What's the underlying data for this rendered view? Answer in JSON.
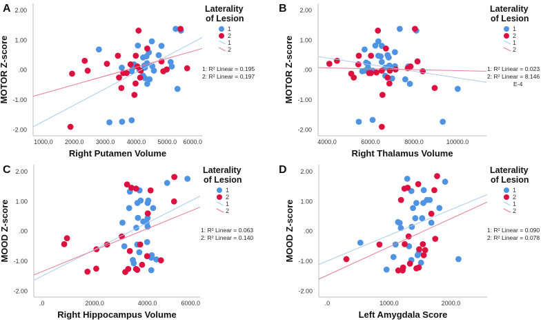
{
  "colors": {
    "group1": "#4F94E3",
    "group2": "#DD1140",
    "fit1": "#A8CBEF",
    "fit2": "#E77A93"
  },
  "chart_data": [
    {
      "type": "scatter",
      "panel_letter": "A",
      "xlabel": "Right Putamen Volume",
      "ylabel": "MOTOR Z-score",
      "xlim": [
        667,
        6130
      ],
      "ylim": [
        -2.2,
        2.23
      ],
      "xticks": [
        1000,
        2000,
        3000,
        4000,
        5000,
        6000
      ],
      "xtick_labels": [
        "1000.0",
        "2000.0",
        "3000.0",
        "4000.0",
        "5000.0",
        "6000.0"
      ],
      "yticks": [
        2,
        1,
        0,
        -1,
        -2
      ],
      "ytick_labels": [
        "2.00",
        "1.00",
        ".00",
        "-1.00",
        "-2.00"
      ],
      "legend": {
        "title_line1": "Laterality",
        "title_line2": "of Lesion",
        "items": [
          "1",
          "2",
          "1",
          "2"
        ],
        "placement": "right"
      },
      "r2_labels": [
        "1: R² Linear = 0.195",
        "2: R² Linear = 0.197"
      ],
      "series": [
        {
          "name": "1",
          "x": [
            2793,
            3533,
            3133,
            3541,
            3852,
            4052,
            3926,
            3852,
            3889,
            4104,
            4222,
            4333,
            4407,
            4348,
            4281,
            4259,
            4222,
            4281,
            4430,
            4355,
            4504,
            4519,
            4570,
            4726,
            4815,
            5111,
            5148,
            5333,
            5274,
            5444
          ],
          "y": [
            0.69,
            0.08,
            -1.75,
            -1.73,
            -1.68,
            0.82,
            0.19,
            -0.04,
            0.08,
            0,
            0.42,
            0.46,
            0.59,
            0.23,
            0.08,
            0.15,
            -0.19,
            -0.27,
            -0.31,
            -0.46,
            0.96,
            0.13,
            -0.02,
            0.5,
            0.81,
            0.27,
            0.12,
            -0.63,
            1.38,
            1.32
          ],
          "fit": {
            "x": [
              667,
              6130
            ],
            "y": [
              -1.9,
              1.09
            ]
          }
        },
        {
          "name": "2",
          "x": [
            1874,
            1926,
            2333,
            2430,
            3052,
            3407,
            3444,
            3519,
            3578,
            3689,
            3815,
            3985,
            3978,
            3941,
            4037,
            4074,
            4148,
            4126,
            4356,
            4815,
            4874,
            4985,
            5430,
            5644
          ],
          "y": [
            -1.9,
            -0.12,
            0.31,
            -0.02,
            0.21,
            0.48,
            -0.25,
            -0.6,
            -0.1,
            -0.1,
            0.19,
            0.48,
            -0.45,
            -0.83,
            0.12,
            1.32,
            -0.02,
            -0.25,
            0.72,
            0.29,
            -0.04,
            0.02,
            1.38,
            0.06
          ],
          "fit": {
            "x": [
              667,
              6130
            ],
            "y": [
              -0.88,
              0.72
            ]
          }
        }
      ]
    },
    {
      "type": "scatter",
      "panel_letter": "B",
      "xlabel": "Right Thalamus Volume",
      "ylabel": "MOTOR Z-score",
      "xlim": [
        3587,
        11333
      ],
      "ylim": [
        -2.2,
        2.23
      ],
      "xticks": [
        4000,
        6000,
        8000,
        10000
      ],
      "xtick_labels": [
        "4000.0",
        "6000.0",
        "8000.0",
        "10000.0"
      ],
      "yticks": [
        2,
        1,
        0,
        -1,
        -2
      ],
      "ytick_labels": [
        "2.00",
        "1.00",
        ".00",
        "-1.00",
        "-2.00"
      ],
      "legend": {
        "title_line1": "Laterality",
        "title_line2": "of Lesion",
        "items": [
          "1",
          "2",
          "1",
          "2"
        ],
        "placement": "right"
      },
      "r2_labels": [
        "1: R² Linear = 0.023",
        "2: R² Linear = 8.146",
        "E-4"
      ],
      "series": [
        {
          "name": "1",
          "x": [
            5460,
            6095,
            9323,
            7344,
            8106,
            6360,
            6222,
            6519,
            5725,
            6360,
            6466,
            6783,
            6836,
            7122,
            5799,
            5884,
            6519,
            5884,
            5619,
            5725,
            6095,
            6677,
            6868,
            7122,
            7100,
            6677,
            6995,
            7598,
            7810,
            7735,
            10011
          ],
          "y": [
            -1.73,
            -1.67,
            -1.73,
            1.38,
            1.32,
            0.96,
            0.82,
            0.81,
            0.69,
            0.48,
            0.46,
            0.5,
            0.42,
            0.6,
            0.25,
            0.21,
            0.27,
            0.08,
            -0.04,
            -0.02,
            -0.02,
            0.08,
            0.15,
            0.13,
            0.09,
            -0.19,
            -0.28,
            -0.31,
            -0.46,
            0.12,
            -0.63
          ],
          "fit": {
            "x": [
              3587,
              11333
            ],
            "y": [
              0.45,
              -0.41
            ]
          }
        },
        {
          "name": "2",
          "x": [
            4106,
            4455,
            5111,
            5228,
            5460,
            5439,
            5937,
            6021,
            6021,
            6275,
            6339,
            6519,
            6550,
            6519,
            6709,
            6783,
            6868,
            6889,
            7153,
            7714,
            7841,
            8042,
            8159,
            8402,
            8952
          ],
          "y": [
            0.21,
            0.31,
            -0.12,
            -0.25,
            0.48,
            0.19,
            -0.1,
            -0.1,
            0.48,
            -0.08,
            1.32,
            -0.02,
            -0.83,
            -1.9,
            0.72,
            -0.25,
            -0.45,
            -0.02,
            0.02,
            0.06,
            0.12,
            1.38,
            0.29,
            -0.04,
            -0.6
          ],
          "fit": {
            "x": [
              3587,
              11333
            ],
            "y": [
              0.08,
              -0.04
            ]
          }
        }
      ]
    },
    {
      "type": "scatter",
      "panel_letter": "C",
      "xlabel": "Right Hippocampus Volume",
      "ylabel": "MOOD Z-score",
      "xlim": [
        -306,
        6000
      ],
      "ylim": [
        -2.2,
        2.23
      ],
      "xticks": [
        0,
        2000,
        4000,
        6000
      ],
      "xtick_labels": [
        ".0",
        "2000.0",
        "4000.0",
        "6000.0"
      ],
      "yticks": [
        2,
        1,
        0,
        -1,
        -2
      ],
      "ytick_labels": [
        "2.00",
        "1.00",
        ".00",
        "-1.00",
        "-2.00"
      ],
      "legend": {
        "title_line1": "Laterality",
        "title_line2": "of Lesion",
        "items": [
          "1",
          "2",
          "1",
          "2"
        ],
        "placement": "right"
      },
      "r2_labels": [
        "1: R² Linear = 0.063",
        "2: R² Linear = 0.140"
      ],
      "series": [
        {
          "name": "1",
          "x": [
            5520,
            4751,
            3336,
            3703,
            3624,
            3747,
            4035,
            4009,
            3310,
            4218,
            3642,
            4009,
            3057,
            3843,
            3974,
            4009,
            3581,
            3127,
            3616,
            3991,
            3694,
            3450,
            3485,
            4166,
            4148,
            4341,
            4148
          ],
          "y": [
            1.76,
            1.62,
            1.33,
            1.37,
            0.95,
            1.03,
            1.03,
            0.95,
            0.78,
            0.78,
            0.45,
            0.45,
            0.29,
            0.33,
            0.29,
            0.16,
            0.12,
            -0.5,
            -0.44,
            -0.36,
            -0.7,
            -0.96,
            -1.07,
            -0.8,
            -0.88,
            -0.94,
            -1.3
          ],
          "fit": {
            "x": [
              -306,
              6000
            ],
            "y": [
              -1.64,
              1.18
            ]
          }
        },
        {
          "name": "2",
          "x": [
            847,
            952,
            2070,
            2472,
            2061,
            1729,
            3031,
            3231,
            3397,
            3572,
            4122,
            3336,
            3729,
            4017,
            3991,
            3275,
            3162,
            3572,
            3616,
            3799,
            4515,
            5022,
            5013
          ],
          "y": [
            -0.43,
            -0.23,
            -0.6,
            -0.44,
            -1.25,
            -1.35,
            -0.17,
            1.57,
            1.46,
            1.43,
            1.37,
            -0.66,
            -0.44,
            0.6,
            -0.83,
            -1.26,
            -1.36,
            -1.26,
            -1.29,
            -1.12,
            -0.97,
            1.82,
            1.0
          ],
          "fit": {
            "x": [
              -306,
              6000
            ],
            "y": [
              -1.46,
              0.81
            ]
          }
        }
      ]
    },
    {
      "type": "scatter",
      "panel_letter": "D",
      "xlabel": "Left Amygdala Score",
      "ylabel": "MOOD Z-score",
      "xlim": [
        -138,
        2587
      ],
      "ylim": [
        -2.2,
        2.23
      ],
      "xticks": [
        0,
        1000,
        2000
      ],
      "xtick_labels": [
        ".0",
        "1000.0",
        "2000.0"
      ],
      "yticks": [
        2,
        1,
        0,
        -1,
        -2
      ],
      "ytick_labels": [
        "2.00",
        "1.00",
        ".00",
        "-1.00",
        "-2.00"
      ],
      "legend": {
        "title_line1": "Laterality",
        "title_line2": "of Lesion",
        "items": [
          "1",
          "2",
          "1",
          "2"
        ],
        "placement": "right"
      },
      "r2_labels": [
        "1: R² Linear = 0.090",
        "2: R² Linear = 0.078"
      ],
      "series": [
        {
          "name": "1",
          "x": [
            1294,
            1907,
            1361,
            1561,
            1442,
            1554,
            1613,
            1658,
            1387,
            1814,
            1424,
            1535,
            1145,
            1171,
            1684,
            1190,
            1368,
            535,
            1104,
            1323,
            1480,
            1461,
            1071,
            1361,
            1517,
            959,
            2123
          ],
          "y": [
            1.76,
            1.66,
            1.35,
            1.38,
            0.95,
            0.95,
            1.05,
            1.05,
            0.78,
            0.78,
            0.44,
            0.44,
            0.31,
            0.28,
            0.29,
            0.11,
            0.15,
            -0.38,
            -0.44,
            -0.5,
            -0.73,
            -0.8,
            -0.86,
            -0.96,
            -1.05,
            -1.28,
            -0.93
          ],
          "fit": {
            "x": [
              -138,
              2587
            ],
            "y": [
              -1.11,
              1.23
            ]
          }
        },
        {
          "name": "2",
          "x": [
            309,
            844,
            1193,
            1249,
            1301,
            1472,
            1777,
            1732,
            1684,
            1747,
            1316,
            1253,
            1546,
            1487,
            1584,
            1561,
            1338,
            1227,
            1219,
            1149,
            1442,
            1480
          ],
          "y": [
            -0.93,
            -0.44,
            1.05,
            1.43,
            1.46,
            1.58,
            1.85,
            1.38,
            0.59,
            -0.25,
            -0.17,
            -0.43,
            -0.43,
            -0.6,
            -0.63,
            -0.8,
            -1.08,
            -1.21,
            -1.31,
            -1.31,
            -1.24,
            -1.21
          ],
          "fit": {
            "x": [
              -138,
              2587
            ],
            "y": [
              -1.6,
              0.98
            ]
          }
        }
      ]
    }
  ]
}
